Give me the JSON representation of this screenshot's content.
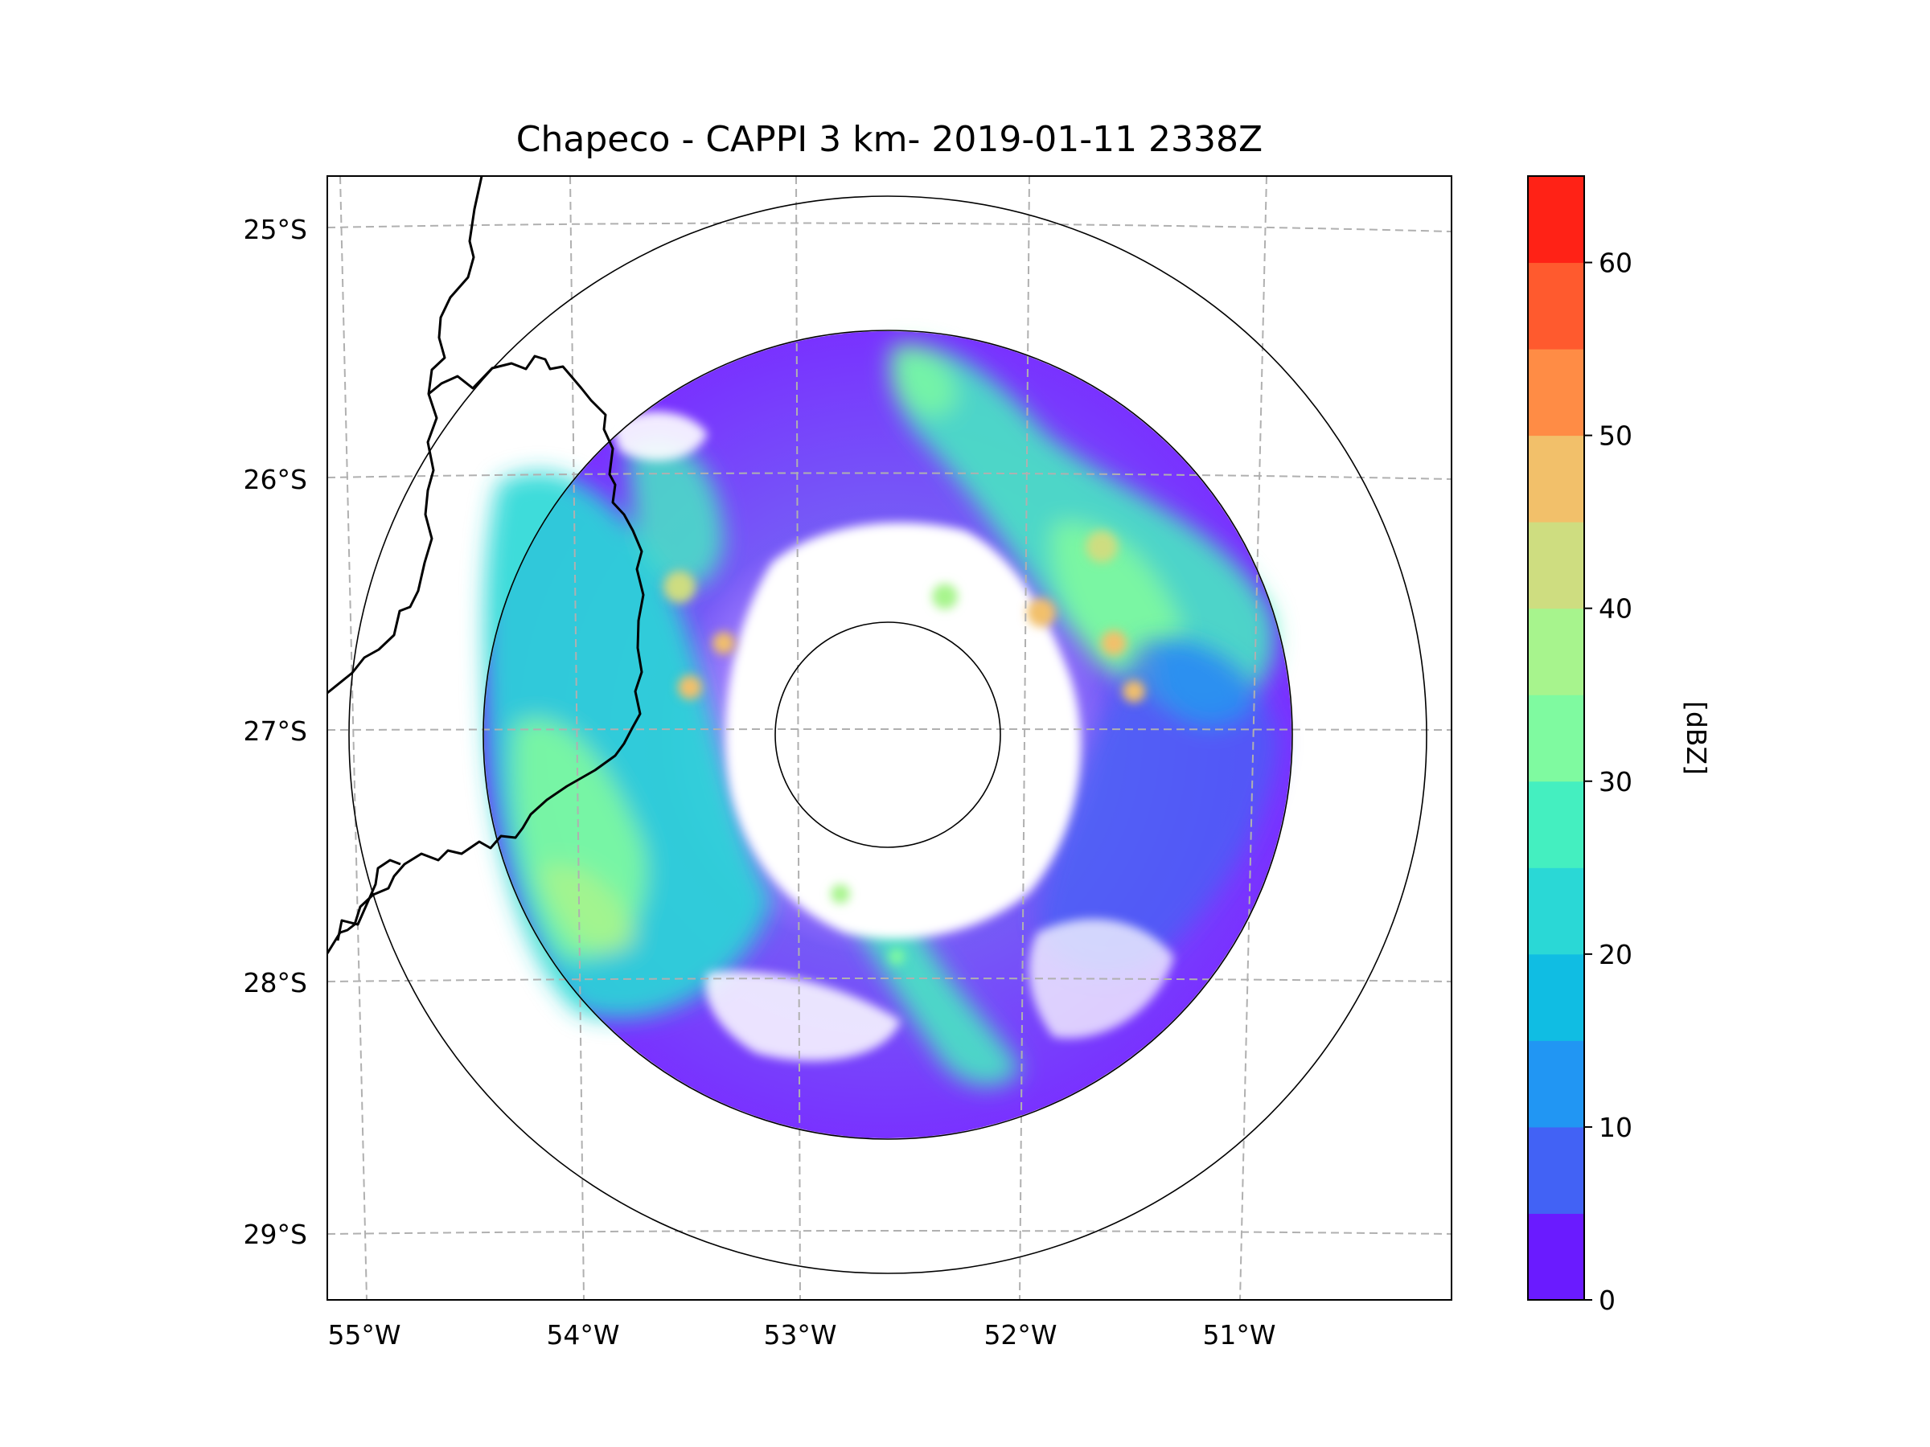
{
  "figure": {
    "title": "Chapeco - CAPPI 3 km- 2019-01-11 2338Z"
  },
  "map": {
    "lon_ticks": [
      "55°W",
      "54°W",
      "53°W",
      "52°W",
      "51°W"
    ],
    "lat_ticks": [
      "25°S",
      "26°S",
      "27°S",
      "28°S",
      "29°S"
    ],
    "range_rings": [
      "inner ring",
      "middle ring",
      "outer ring"
    ],
    "boundaries": [
      "border Argentina-Brazil",
      "border Parana-Santa Catarina",
      "border Santa Catarina-Rio Grande do Sul"
    ]
  },
  "colorbar": {
    "label": "[dBZ]",
    "ticks": [
      "0",
      "10",
      "20",
      "30",
      "40",
      "50",
      "60"
    ],
    "levels": [
      0,
      5,
      10,
      15,
      20,
      25,
      30,
      35,
      40,
      45,
      50,
      55,
      60,
      65
    ],
    "colors": [
      "#6a1bff",
      "#4262f5",
      "#2196f3",
      "#10bde3",
      "#2ad8d6",
      "#44efc0",
      "#7ffaa0",
      "#a7f48d",
      "#cedd80",
      "#f2c06a",
      "#ff8c45",
      "#ff5a2e",
      "#ff2216"
    ]
  },
  "chart_data": {
    "type": "heatmap",
    "title": "Chapeco - CAPPI 3 km- 2019-01-11 2338Z",
    "xlabel": "",
    "ylabel": "",
    "x_ticks": [
      "55°W",
      "54°W",
      "53°W",
      "52°W",
      "51°W"
    ],
    "y_ticks": [
      "25°S",
      "26°S",
      "27°S",
      "28°S",
      "29°S"
    ],
    "xlim": [
      -55.2,
      -50.05
    ],
    "ylim": [
      -29.3,
      -24.8
    ],
    "colorbar": {
      "label": "[dBZ]",
      "range": [
        0,
        65
      ],
      "ticks": [
        0,
        10,
        20,
        30,
        40,
        50,
        60
      ]
    },
    "radar_site": "Chapeco",
    "product": "CAPPI 3 km",
    "timestamp": "2019-01-11 2338Z"
  }
}
